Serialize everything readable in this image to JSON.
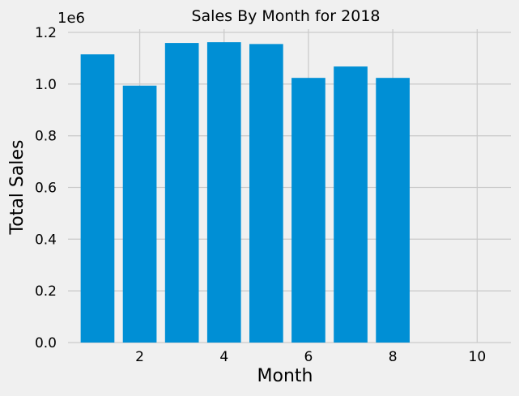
{
  "chart_data": {
    "type": "bar",
    "title": "Sales By Month for 2018",
    "xlabel": "Month",
    "ylabel": "Total Sales",
    "y_offset_label": "1e6",
    "y_scale": 1000000,
    "categories": [
      1,
      2,
      3,
      4,
      5,
      6,
      7,
      8
    ],
    "values": [
      1115000,
      994000,
      1159000,
      1162000,
      1155000,
      1024000,
      1068000,
      1024000
    ],
    "xlim": [
      0.3,
      10.8
    ],
    "ylim": [
      0,
      1.2
    ],
    "xticks": [
      2,
      4,
      6,
      8,
      10
    ],
    "yticks": [
      0.0,
      0.2,
      0.4,
      0.6,
      0.8,
      1.0,
      1.2
    ],
    "bar_width": 0.8,
    "grid": true,
    "colors": {
      "bar": "#008fd5",
      "background": "#f0f0f0",
      "grid": "#cbcbcb"
    }
  }
}
